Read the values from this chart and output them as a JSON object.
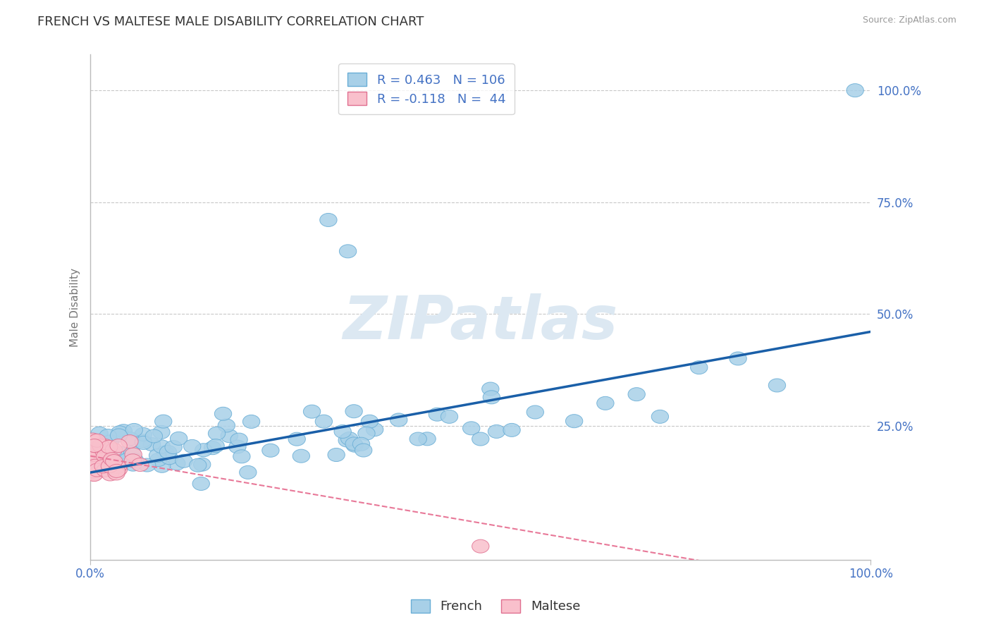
{
  "title": "FRENCH VS MALTESE MALE DISABILITY CORRELATION CHART",
  "source": "Source: ZipAtlas.com",
  "ylabel": "Male Disability",
  "ytick_labels": [
    "25.0%",
    "50.0%",
    "75.0%",
    "100.0%"
  ],
  "ytick_values": [
    0.25,
    0.5,
    0.75,
    1.0
  ],
  "xtick_labels": [
    "0.0%",
    "100.0%"
  ],
  "xlim": [
    0.0,
    1.0
  ],
  "ylim": [
    -0.05,
    1.08
  ],
  "french_R": 0.463,
  "french_N": 106,
  "maltese_R": -0.118,
  "maltese_N": 44,
  "french_color": "#a8d0e8",
  "french_edge": "#6aaed6",
  "maltese_color": "#f9c0cc",
  "maltese_edge": "#e07090",
  "french_line_color": "#1a5fa8",
  "maltese_line_color": "#e87898",
  "legend_color": "#4472c4",
  "watermark_color": "#dce8f2",
  "background_color": "#ffffff",
  "grid_color": "#c8c8c8",
  "title_color": "#333333",
  "axis_tick_color": "#4472c4",
  "ylabel_color": "#777777",
  "source_color": "#999999"
}
